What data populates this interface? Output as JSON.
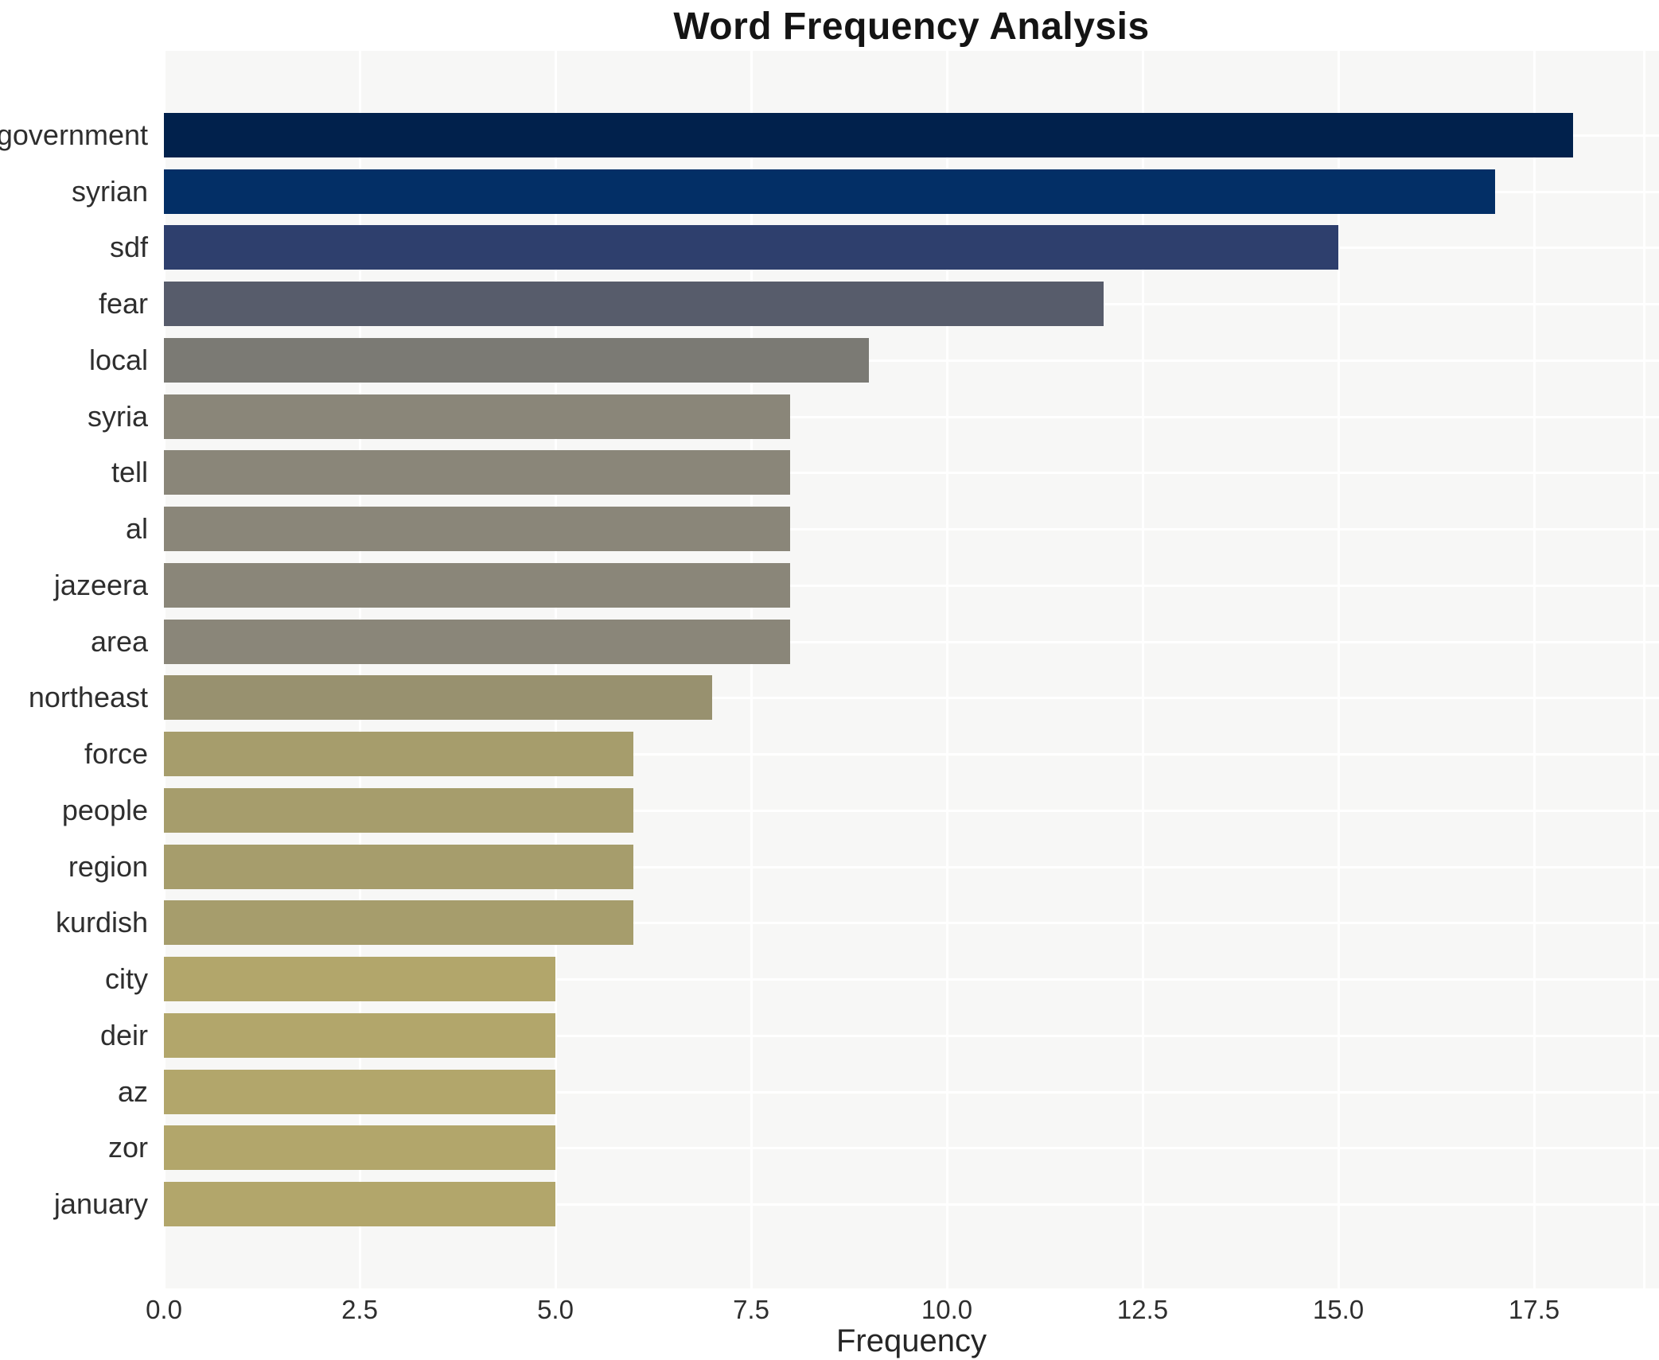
{
  "chart_data": {
    "type": "bar",
    "orientation": "horizontal",
    "title": "Word Frequency Analysis",
    "xlabel": "Frequency",
    "ylabel": "",
    "categories": [
      "government",
      "syrian",
      "sdf",
      "fear",
      "local",
      "syria",
      "tell",
      "al",
      "jazeera",
      "area",
      "northeast",
      "force",
      "people",
      "region",
      "kurdish",
      "city",
      "deir",
      "az",
      "zor",
      "january"
    ],
    "values": [
      18,
      17,
      15,
      12,
      9,
      8,
      8,
      8,
      8,
      8,
      7,
      6,
      6,
      6,
      6,
      5,
      5,
      5,
      5,
      5
    ],
    "bar_colors": [
      "#01214c",
      "#032f66",
      "#2e3f6d",
      "#575c6b",
      "#7b7a74",
      "#8a8679",
      "#8a8679",
      "#8a8679",
      "#8a8679",
      "#8a8679",
      "#98916f",
      "#a69d6c",
      "#a69d6c",
      "#a69d6c",
      "#a69d6c",
      "#b2a66b",
      "#b2a66b",
      "#b2a66b",
      "#b2a66b",
      "#b2a66b"
    ],
    "xticks": [
      0.0,
      2.5,
      5.0,
      7.5,
      10.0,
      12.5,
      15.0,
      17.5
    ],
    "xtick_labels": [
      "0.0",
      "2.5",
      "5.0",
      "7.5",
      "10.0",
      "12.5",
      "15.0",
      "17.5"
    ],
    "xlim": [
      0,
      18.9
    ],
    "grid": true,
    "legend": "none",
    "plot_bg_color": "#f7f7f6",
    "grid_color": "#ffffff",
    "title_color": "#141414",
    "tick_label_color": "#2e2e2e"
  }
}
